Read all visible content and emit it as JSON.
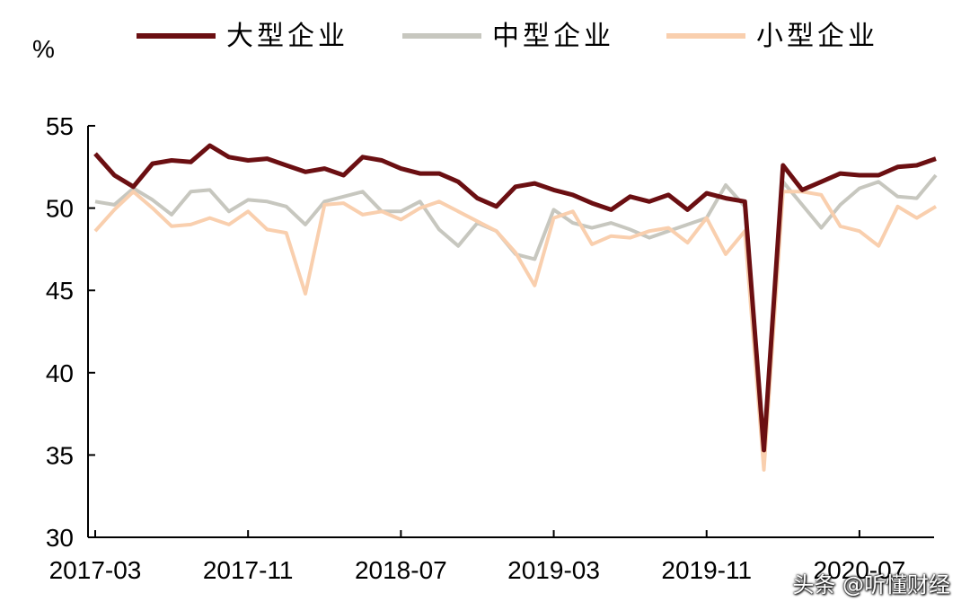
{
  "chart_data": {
    "type": "line",
    "ylabel": "%",
    "ylim": [
      30,
      55
    ],
    "yticks": [
      30,
      35,
      40,
      45,
      50,
      55
    ],
    "xtick_labels": [
      "2017-03",
      "2017-11",
      "2018-07",
      "2019-03",
      "2019-11",
      "2020-07"
    ],
    "x": [
      "2017-03",
      "2017-04",
      "2017-05",
      "2017-06",
      "2017-07",
      "2017-08",
      "2017-09",
      "2017-10",
      "2017-11",
      "2017-12",
      "2018-01",
      "2018-02",
      "2018-03",
      "2018-04",
      "2018-05",
      "2018-06",
      "2018-07",
      "2018-08",
      "2018-09",
      "2018-10",
      "2018-11",
      "2018-12",
      "2019-01",
      "2019-02",
      "2019-03",
      "2019-04",
      "2019-05",
      "2019-06",
      "2019-07",
      "2019-08",
      "2019-09",
      "2019-10",
      "2019-11",
      "2019-12",
      "2020-01",
      "2020-02",
      "2020-03",
      "2020-04",
      "2020-05",
      "2020-06",
      "2020-07",
      "2020-08",
      "2020-09",
      "2020-10",
      "2020-11"
    ],
    "series": [
      {
        "name": "大型企业",
        "color": "#6b0f12",
        "values": [
          53.3,
          52.0,
          51.3,
          52.7,
          52.9,
          52.8,
          53.8,
          53.1,
          52.9,
          53.0,
          52.6,
          52.2,
          52.4,
          52.0,
          53.1,
          52.9,
          52.4,
          52.1,
          52.1,
          51.6,
          50.6,
          50.1,
          51.3,
          51.5,
          51.1,
          50.8,
          50.3,
          49.9,
          50.7,
          50.4,
          50.8,
          49.9,
          50.9,
          50.6,
          50.4,
          35.3,
          52.6,
          51.1,
          51.6,
          52.1,
          52.0,
          52.0,
          52.5,
          52.6,
          53.0
        ]
      },
      {
        "name": "中型企业",
        "color": "#c7c7bf",
        "values": [
          50.4,
          50.2,
          51.2,
          50.5,
          49.6,
          51.0,
          51.1,
          49.8,
          50.5,
          50.4,
          50.1,
          49.0,
          50.4,
          50.7,
          51.0,
          49.8,
          49.8,
          50.4,
          48.7,
          47.7,
          49.1,
          48.6,
          47.2,
          46.9,
          49.9,
          49.1,
          48.8,
          49.1,
          48.7,
          48.2,
          48.6,
          49.0,
          49.4,
          51.4,
          50.1,
          35.5,
          51.6,
          50.2,
          48.8,
          50.2,
          51.2,
          51.6,
          50.7,
          50.6,
          52.0
        ]
      },
      {
        "name": "小型企业",
        "color": "#f9cfae",
        "values": [
          48.6,
          49.9,
          51.0,
          50.0,
          48.9,
          49.0,
          49.4,
          49.0,
          49.8,
          48.7,
          48.5,
          44.8,
          50.2,
          50.3,
          49.6,
          49.8,
          49.3,
          50.0,
          50.4,
          49.8,
          49.2,
          48.6,
          47.3,
          45.3,
          49.4,
          49.8,
          47.8,
          48.3,
          48.2,
          48.6,
          48.8,
          47.9,
          49.4,
          47.2,
          48.6,
          34.1,
          51.0,
          51.0,
          50.8,
          48.9,
          48.6,
          47.7,
          50.1,
          49.4,
          50.1
        ]
      }
    ],
    "legend_position": "top",
    "grid": false
  },
  "watermark": "头条 @听懂财经"
}
